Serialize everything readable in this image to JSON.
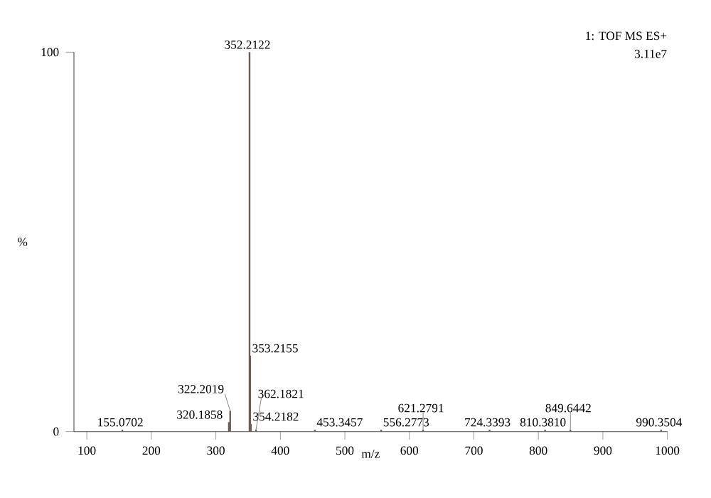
{
  "chart_data": {
    "type": "bar",
    "xlabel": "m/z",
    "ylabel": "%",
    "color": "#6e5c58",
    "x": [
      155.0702,
      320.1858,
      322.2019,
      352.2122,
      353.2155,
      354.2182,
      362.1821,
      453.3457,
      556.2773,
      621.2791,
      724.3393,
      810.381,
      849.6442,
      990.3504
    ],
    "values": [
      0.5,
      2.5,
      5.5,
      100,
      20,
      2,
      0.5,
      0.5,
      0.5,
      0.5,
      0.5,
      0.5,
      0.5,
      0.5
    ],
    "xlim": [
      80,
      1000
    ],
    "ylim": [
      0,
      100
    ],
    "xticks": [
      100,
      200,
      300,
      400,
      500,
      600,
      700,
      800,
      900,
      1000
    ],
    "yticks": [
      0,
      100
    ],
    "annotations": [
      "1: TOF MS ES+",
      "3.11e7",
      {
        "text": "155.0702",
        "x": 155.0702,
        "y": 0.5
      },
      {
        "text": "320.1858",
        "x": 320.1858,
        "y": 2.5
      },
      {
        "text": "322.2019",
        "x": 322.2019,
        "y": 5.5
      },
      {
        "text": "352.2122",
        "x": 352.2122,
        "y": 100
      },
      {
        "text": "353.2155",
        "x": 353.2155,
        "y": 20
      },
      {
        "text": "354.2182",
        "x": 354.2182,
        "y": 2
      },
      {
        "text": "362.1821",
        "x": 362.1821,
        "y": 0.5
      },
      {
        "text": "453.3457",
        "x": 453.3457,
        "y": 0.5
      },
      {
        "text": "556.2773",
        "x": 556.2773,
        "y": 0.5
      },
      {
        "text": "621.2791",
        "x": 621.2791,
        "y": 0.5
      },
      {
        "text": "724.3393",
        "x": 724.3393,
        "y": 0.5
      },
      {
        "text": "810.3810",
        "x": 810.381,
        "y": 0.5
      },
      {
        "text": "849.6442",
        "x": 849.6442,
        "y": 0.5
      },
      {
        "text": "990.3504",
        "x": 990.3504,
        "y": 0.5
      }
    ]
  }
}
